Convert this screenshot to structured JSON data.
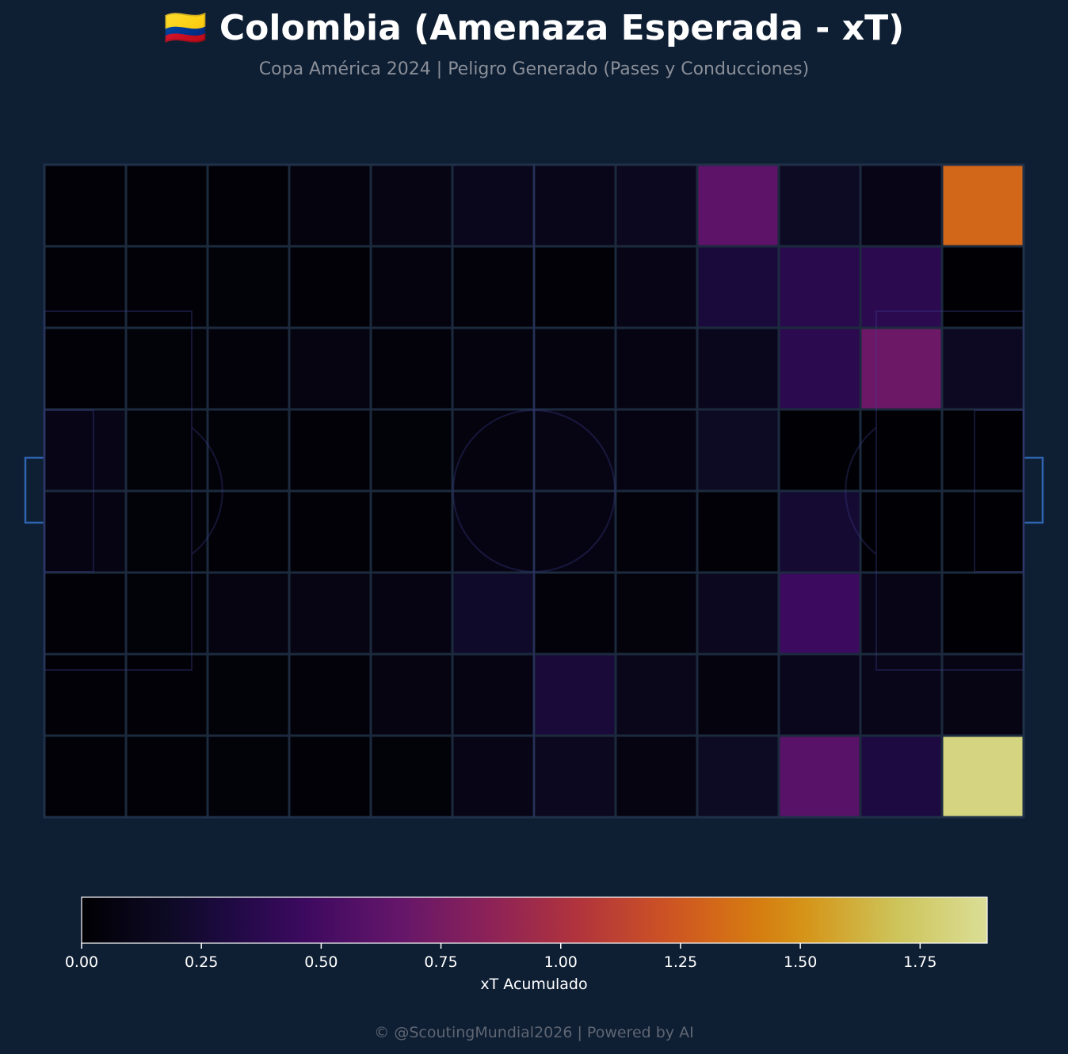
{
  "header": {
    "title": "🇨🇴 Colombia (Amenaza Esperada - xT)",
    "subtitle": "Copa América 2024 | Peligro Generado (Pases y Conducciones)"
  },
  "footer": {
    "credit": "© @ScoutingMundial2026 | Powered by AI"
  },
  "colors": {
    "background": "#0e1e33",
    "grid_line": "#1c2a3e",
    "pitch_marking": "#1f3a5c",
    "goal": "#2e64b0",
    "colormap": "inferno"
  },
  "chart_data": {
    "type": "heatmap",
    "title": "🇨🇴 Colombia (Amenaza Esperada - xT)",
    "subtitle": "Copa América 2024 | Peligro Generado (Pases y Conducciones)",
    "colorbar": {
      "label": "xT Acumulado",
      "range": [
        0,
        1.89
      ],
      "ticks": [
        "0.00",
        "0.25",
        "0.50",
        "0.75",
        "1.00",
        "1.25",
        "1.50",
        "1.75"
      ],
      "tick_values": [
        0,
        0.25,
        0.5,
        0.75,
        1.0,
        1.25,
        1.5,
        1.75
      ],
      "orientation": "horizontal"
    },
    "grid": {
      "rows": 8,
      "cols": 12
    },
    "values": [
      [
        0.02,
        0.02,
        0.02,
        0.06,
        0.09,
        0.14,
        0.12,
        0.15,
        0.62,
        0.18,
        0.1,
        1.32
      ],
      [
        0.02,
        0.02,
        0.03,
        0.02,
        0.06,
        0.04,
        0.02,
        0.1,
        0.28,
        0.36,
        0.38,
        0.01
      ],
      [
        0.02,
        0.03,
        0.04,
        0.07,
        0.04,
        0.06,
        0.06,
        0.08,
        0.14,
        0.38,
        0.7,
        0.17
      ],
      [
        0.1,
        0.03,
        0.03,
        0.02,
        0.03,
        0.06,
        0.09,
        0.08,
        0.18,
        0.01,
        0.01,
        0.01
      ],
      [
        0.08,
        0.03,
        0.02,
        0.02,
        0.02,
        0.08,
        0.08,
        0.04,
        0.02,
        0.24,
        0.01,
        0.01
      ],
      [
        0.02,
        0.03,
        0.07,
        0.09,
        0.08,
        0.2,
        0.04,
        0.05,
        0.15,
        0.46,
        0.1,
        0.01
      ],
      [
        0.02,
        0.02,
        0.03,
        0.04,
        0.07,
        0.08,
        0.27,
        0.13,
        0.06,
        0.14,
        0.12,
        0.09
      ],
      [
        0.02,
        0.02,
        0.03,
        0.02,
        0.03,
        0.1,
        0.15,
        0.07,
        0.18,
        0.6,
        0.3,
        1.82
      ]
    ]
  }
}
